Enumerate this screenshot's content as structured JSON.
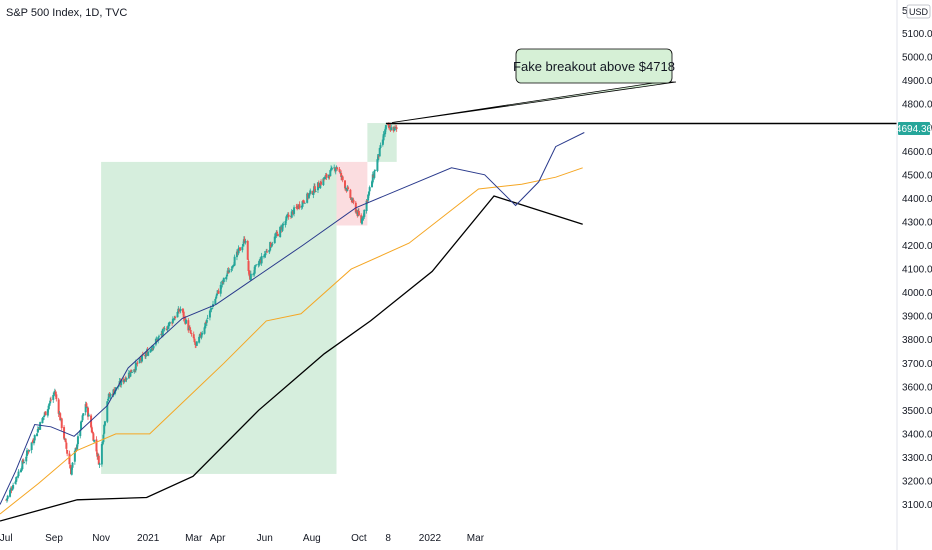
{
  "chart_data": {
    "type": "candlestick",
    "title": "S&P 500 Index, 1D, TVC",
    "currency": "USD",
    "current_price": "4694.36",
    "y_axis_ticks": [
      "3100.00",
      "3200.00",
      "3300.00",
      "3400.00",
      "3500.00",
      "3600.00",
      "3700.00",
      "3800.00",
      "3900.00",
      "4000.00",
      "4100.00",
      "4200.00",
      "4300.00",
      "4400.00",
      "4500.00",
      "4600.00",
      "4700.00",
      "4800.00",
      "4900.00",
      "5000.00",
      "5100.00"
    ],
    "y_axis_top_partial": "5",
    "x_axis_ticks": [
      "Jul",
      "Sep",
      "Nov",
      "2021",
      "Mar",
      "Apr",
      "Jun",
      "Aug",
      "Oct",
      "8",
      "2022",
      "Mar"
    ],
    "ylim": [
      3030,
      5230
    ],
    "annotation": "Fake breakout above $4718",
    "breakout_level": 4718,
    "colors": {
      "up": "#26a69a",
      "down": "#ef5350",
      "ma_fast": "#2a3a8c",
      "ma_mid": "#f5a623",
      "ma_slow": "#000000",
      "zone_green": "#d6eedd",
      "zone_red": "#fbdde0",
      "annotation_bg": "#d6f0d6",
      "price_label_bg": "#26a69a"
    },
    "key_points": [
      {
        "date": "2020-07-01",
        "close": 3120
      },
      {
        "date": "2020-09-02",
        "close": 3580
      },
      {
        "date": "2020-09-23",
        "close": 3240
      },
      {
        "date": "2020-10-12",
        "close": 3530
      },
      {
        "date": "2020-10-30",
        "close": 3270
      },
      {
        "date": "2020-11-09",
        "close": 3550
      },
      {
        "date": "2021-01-01",
        "close": 3750
      },
      {
        "date": "2021-02-12",
        "close": 3930
      },
      {
        "date": "2021-03-04",
        "close": 3770
      },
      {
        "date": "2021-04-01",
        "close": 4000
      },
      {
        "date": "2021-05-07",
        "close": 4230
      },
      {
        "date": "2021-05-12",
        "close": 4060
      },
      {
        "date": "2021-07-01",
        "close": 4320
      },
      {
        "date": "2021-09-02",
        "close": 4537
      },
      {
        "date": "2021-10-04",
        "close": 4300
      },
      {
        "date": "2021-11-05",
        "close": 4700
      },
      {
        "date": "2021-11-19",
        "close": 4694
      }
    ],
    "ma_fast": [
      [
        0,
        3100
      ],
      [
        20,
        3240
      ],
      [
        45,
        3440
      ],
      [
        66,
        3430
      ],
      [
        96,
        3390
      ],
      [
        139,
        3520
      ],
      [
        166,
        3680
      ],
      [
        236,
        3890
      ],
      [
        280,
        3950
      ],
      [
        392,
        4200
      ],
      [
        461,
        4360
      ],
      [
        585,
        4530
      ],
      [
        628,
        4500
      ],
      [
        668,
        4370
      ],
      [
        698,
        4470
      ],
      [
        720,
        4620
      ],
      [
        757,
        4680
      ]
    ],
    "ma_mid": [
      [
        0,
        3060
      ],
      [
        50,
        3190
      ],
      [
        100,
        3330
      ],
      [
        150,
        3400
      ],
      [
        194,
        3400
      ],
      [
        290,
        3700
      ],
      [
        345,
        3880
      ],
      [
        390,
        3910
      ],
      [
        455,
        4100
      ],
      [
        530,
        4210
      ],
      [
        620,
        4440
      ],
      [
        676,
        4460
      ],
      [
        720,
        4490
      ],
      [
        755,
        4530
      ]
    ],
    "ma_slow": [
      [
        0,
        3030
      ],
      [
        100,
        3120
      ],
      [
        190,
        3130
      ],
      [
        250,
        3220
      ],
      [
        335,
        3500
      ],
      [
        420,
        3740
      ],
      [
        480,
        3880
      ],
      [
        560,
        4090
      ],
      [
        640,
        4410
      ],
      [
        755,
        4290
      ]
    ],
    "zones": [
      {
        "type": "green",
        "from": "2020-11-01",
        "to": "2021-09-02",
        "y_from": 3230,
        "y_to": 4555
      },
      {
        "type": "red",
        "from": "2021-09-02",
        "to": "2021-10-12",
        "y_from": 4285,
        "y_to": 4555
      },
      {
        "type": "green",
        "from": "2021-10-12",
        "to": "2021-11-19",
        "y_from": 4555,
        "y_to": 4720
      }
    ]
  }
}
